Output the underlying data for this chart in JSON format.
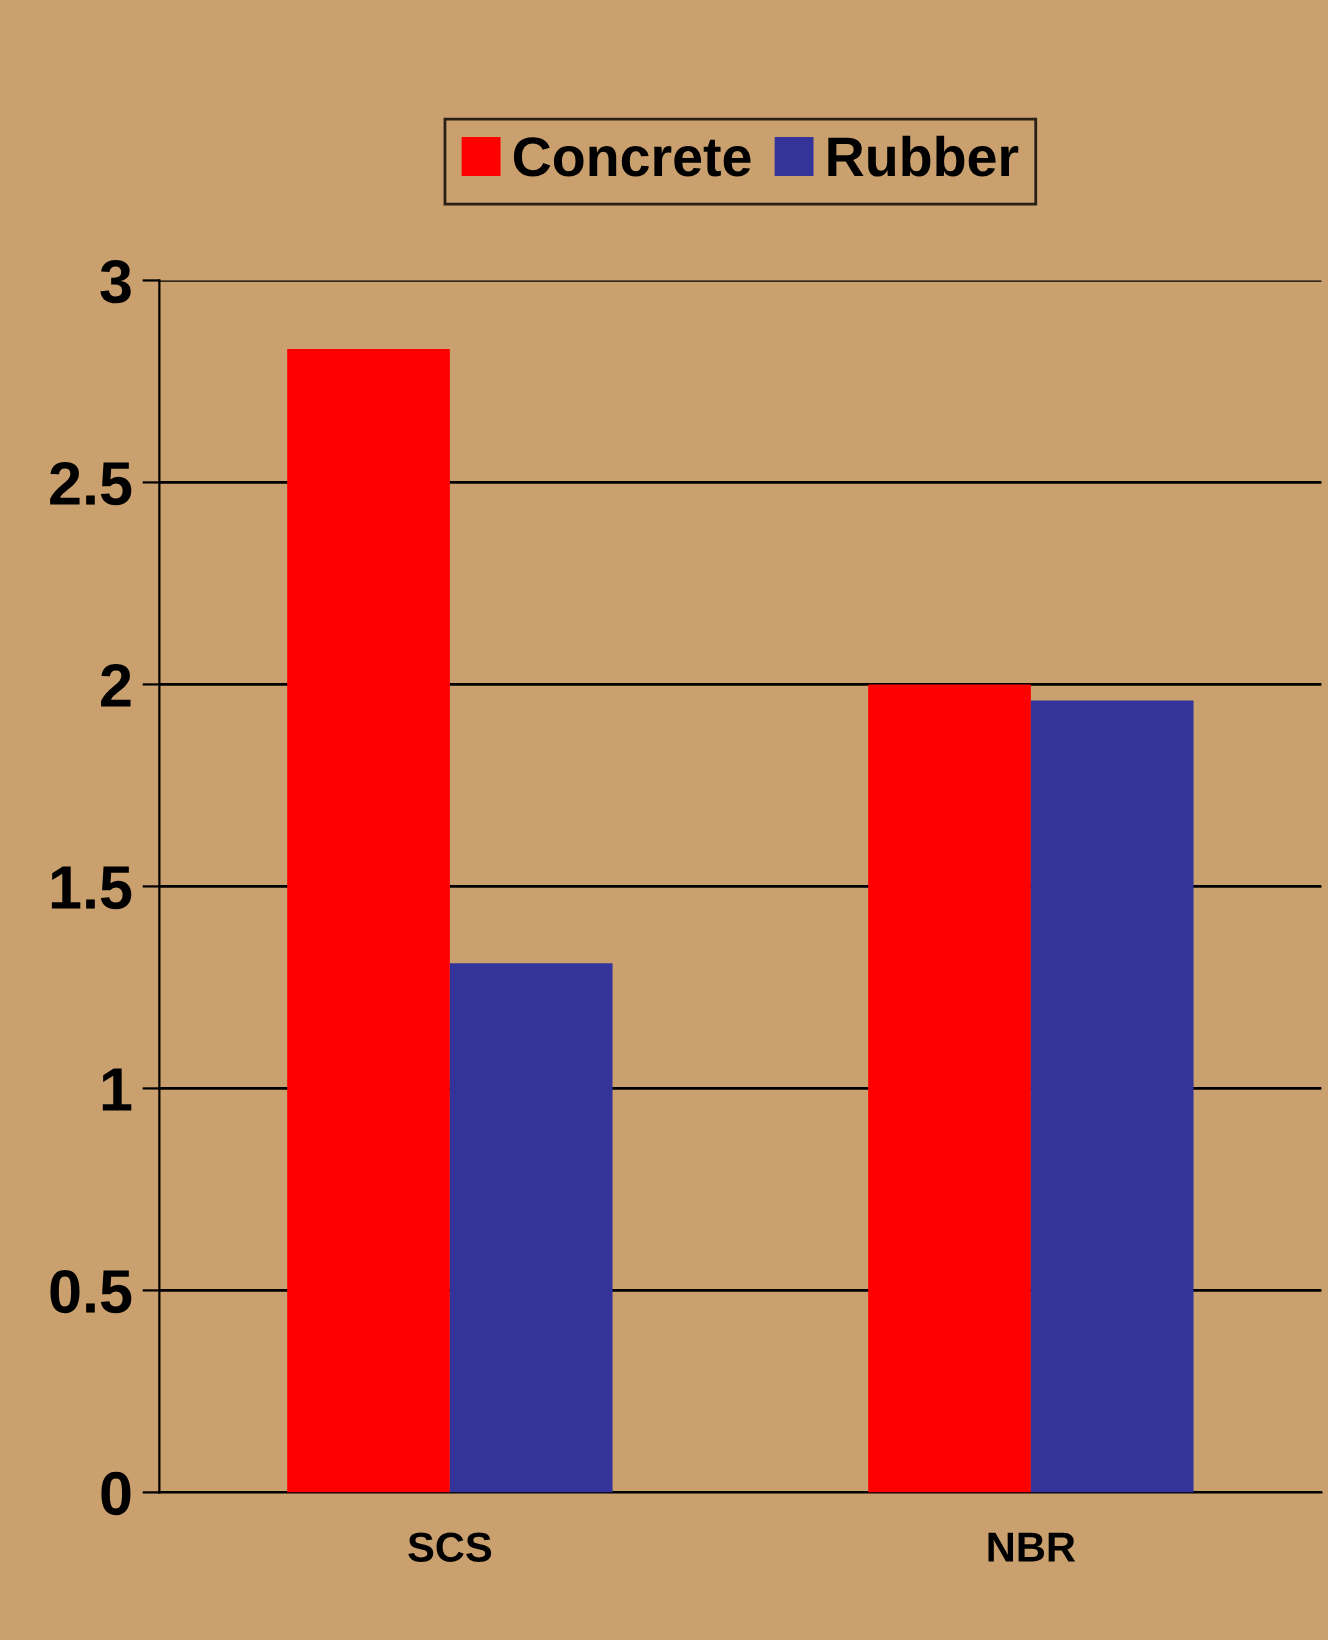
{
  "chart_data": {
    "type": "bar",
    "categories": [
      "SCS",
      "NBR"
    ],
    "series": [
      {
        "name": "Concrete",
        "color": "#ff0000",
        "values": [
          2.83,
          2.0
        ]
      },
      {
        "name": "Rubber",
        "color": "#333399",
        "values": [
          1.31,
          1.96
        ]
      }
    ],
    "ylim": [
      0,
      3
    ],
    "yticks": [
      0,
      0.5,
      1,
      1.5,
      2,
      2.5,
      3
    ],
    "grid": "y",
    "legend": "top"
  }
}
